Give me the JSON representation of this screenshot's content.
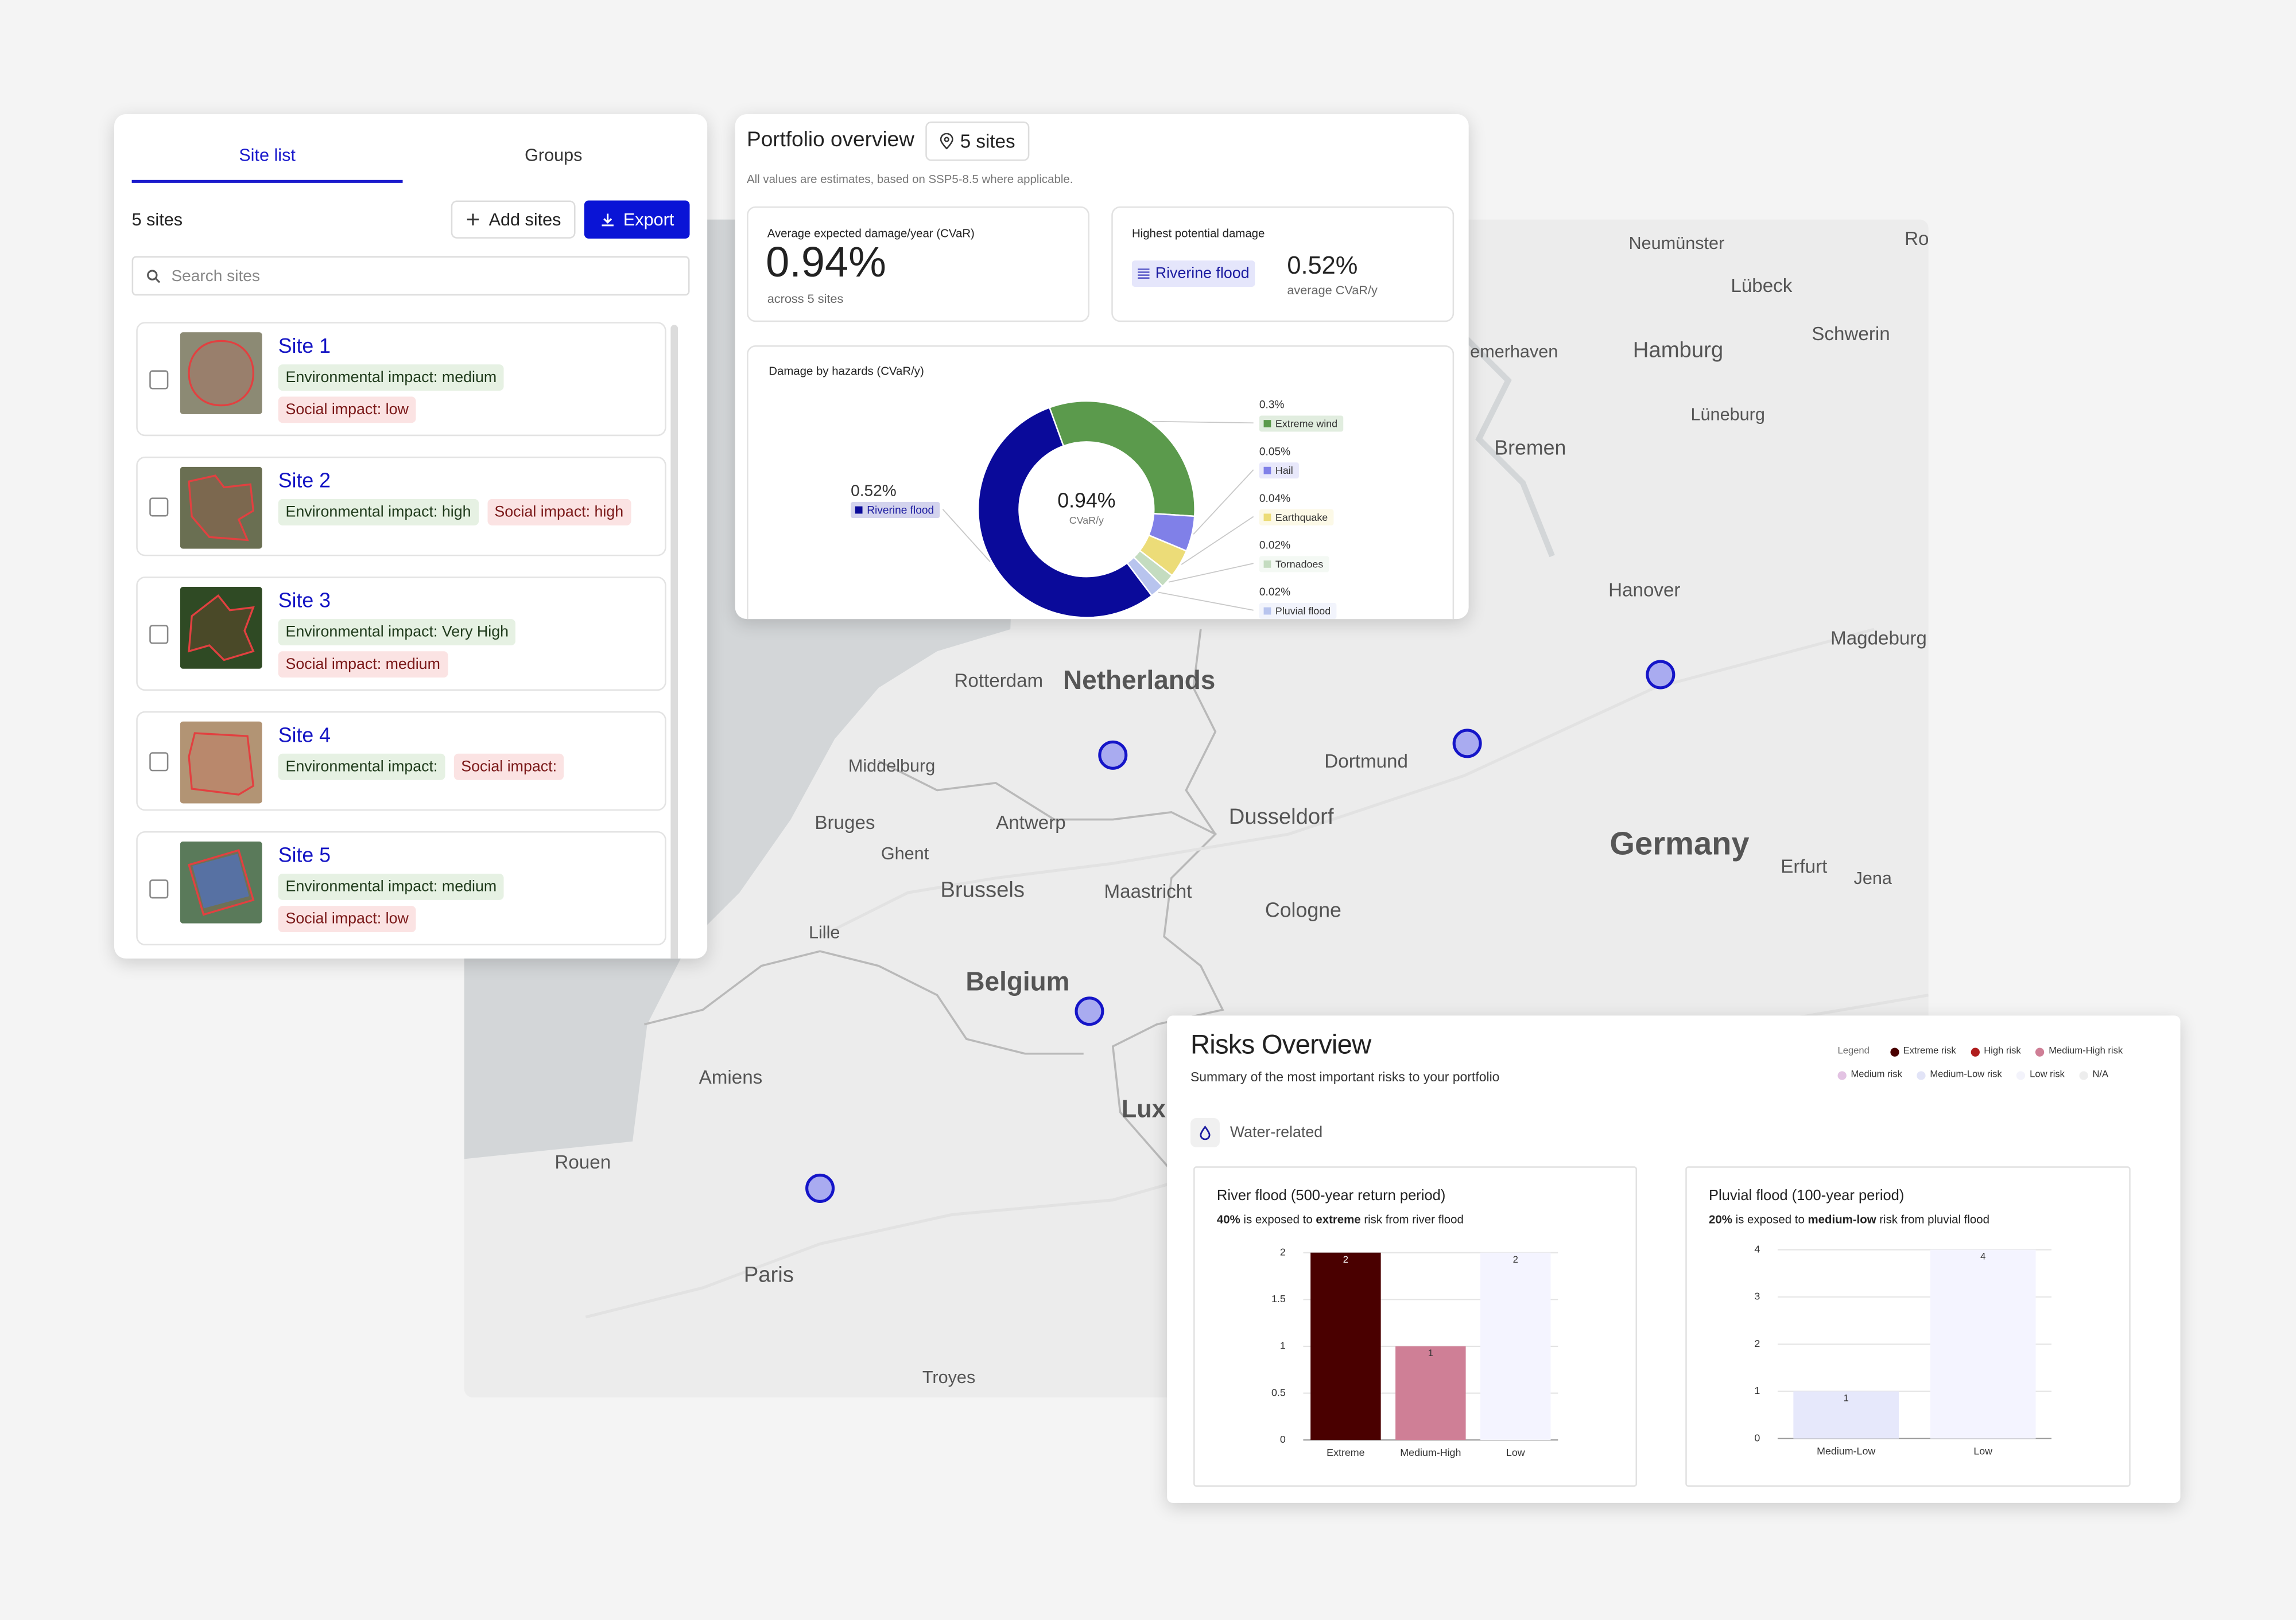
{
  "site_panel": {
    "tabs": [
      "Site list",
      "Groups"
    ],
    "count": "5 sites",
    "add_button": "Add sites",
    "export_button": "Export",
    "search_placeholder": "Search sites",
    "sites": [
      {
        "name": "Site 1",
        "environmental": "Environmental impact: medium",
        "social": "Social impact: low"
      },
      {
        "name": "Site 2",
        "environmental": "Environmental impact: high",
        "social": "Social impact: high"
      },
      {
        "name": "Site 3",
        "environmental": "Environmental impact: Very High",
        "social": "Social impact: medium"
      },
      {
        "name": "Site 4",
        "environmental": "Environmental impact:",
        "social": "Social impact:"
      },
      {
        "name": "Site 5",
        "environmental": "Environmental impact: medium",
        "social": "Social impact: low"
      }
    ]
  },
  "portfolio": {
    "title": "Portfolio overview",
    "sites_badge": "5 sites",
    "note": "All values are estimates, based on SSP5-8.5 where applicable.",
    "cvar_card": {
      "label": "Average expected damage/year (CVaR)",
      "value": "0.94%",
      "sub": "across 5 sites"
    },
    "highest_card": {
      "label": "Highest potential damage",
      "hazard": "Riverine flood",
      "value": "0.52%",
      "sub": "average CVaR/y"
    },
    "chart_data": {
      "type": "donut",
      "title": "Damage by hazards (CVaR/y)",
      "center_value": "0.94%",
      "center_label": "CVaR/y",
      "categories": [
        "Extreme wind",
        "Hail",
        "Earthquake",
        "Tornadoes",
        "Pluvial flood",
        "Riverine flood"
      ],
      "values": [
        0.3,
        0.05,
        0.04,
        0.02,
        0.02,
        0.52
      ],
      "value_labels": [
        "0.3%",
        "0.05%",
        "0.04%",
        "0.02%",
        "0.02%",
        "0.52%"
      ],
      "colors": [
        "#5b9a4c",
        "#8080e8",
        "#ecdc78",
        "#c4dcc0",
        "#b8c4ee",
        "#0a0a9a"
      ]
    }
  },
  "map": {
    "places": [
      "Neumünster",
      "Lübeck",
      "Ro",
      "Schwerin",
      "Hamburg",
      "emerhaven",
      "Lüneburg",
      "Bremen",
      "Hanover",
      "Magdeburg",
      "Rotterdam",
      "Netherlands",
      "Dortmund",
      "Middelburg",
      "Bruges",
      "Antwerp",
      "Dusseldorf",
      "Ghent",
      "Germany",
      "Erfurt",
      "Jena",
      "Brussels",
      "Maastricht",
      "Cologne",
      "Lille",
      "Belgium",
      "Lux",
      "Amiens",
      "Rouen",
      "Paris",
      "Troyes"
    ]
  },
  "risks": {
    "title": "Risks Overview",
    "subtitle": "Summary of the most important risks to your portfolio",
    "legend_title": "Legend",
    "legend": [
      {
        "name": "Extreme risk",
        "color": "#4a0000"
      },
      {
        "name": "High risk",
        "color": "#b01e1e"
      },
      {
        "name": "Medium-High risk",
        "color": "#cf7f96"
      },
      {
        "name": "Medium risk",
        "color": "#e3c3e3"
      },
      {
        "name": "Medium-Low risk",
        "color": "#e2e4f7"
      },
      {
        "name": "Low risk",
        "color": "#f3f3fb"
      },
      {
        "name": "N/A",
        "color": "#ededed"
      }
    ],
    "group": "Water-related",
    "charts": [
      {
        "type": "bar",
        "title": "River flood (500-year return period)",
        "summary": [
          "40%",
          " is exposed to ",
          "extreme",
          " risk from river flood"
        ],
        "categories": [
          "Extreme",
          "Medium-High",
          "Low"
        ],
        "values": [
          2,
          1,
          2
        ],
        "colors": [
          "#4a0000",
          "#cf7f96",
          "#f4f4ff"
        ],
        "ylim": [
          0,
          2
        ],
        "yticks": [
          0,
          0.5,
          1,
          1.5,
          2
        ]
      },
      {
        "type": "bar",
        "title": "Pluvial flood (100-year period)",
        "summary": [
          "20%",
          " is exposed to ",
          "medium-low",
          " risk from pluvial flood"
        ],
        "categories": [
          "Medium-Low",
          "Low"
        ],
        "values": [
          1,
          4
        ],
        "colors": [
          "#e6e8fb",
          "#f4f4ff"
        ],
        "ylim": [
          0,
          4
        ],
        "yticks": [
          0,
          1,
          2,
          3,
          4
        ]
      }
    ]
  }
}
